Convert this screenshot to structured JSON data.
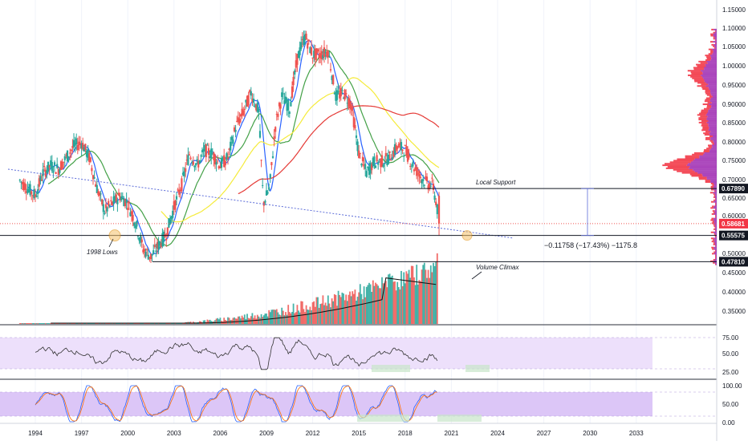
{
  "colors": {
    "up": "#26a69a",
    "down": "#ef5350",
    "ma_blue": "#2962ff",
    "ma_green": "#43a047",
    "ma_yellow": "#f5eb3b",
    "ma_red": "#e53935",
    "trend": "#5b6bd8",
    "volume_ma": "#111111",
    "osc_fill": "#ede0fb",
    "osc_line": "#333333",
    "stoch_k": "#2962ff",
    "stoch_d": "#ff6d00",
    "profile_red": "#f23645",
    "profile_purple": "#9c27b0",
    "grid": "#f0f3fa",
    "axis_text": "#131722"
  },
  "price_axis": {
    "ticks": [
      "1.15000",
      "1.10000",
      "1.05000",
      "1.00000",
      "0.95000",
      "0.90000",
      "0.85000",
      "0.80000",
      "0.75000",
      "0.70000",
      "0.65000",
      "0.60000",
      "0.50000",
      "0.45000",
      "0.40000",
      "0.35000"
    ],
    "labels": [
      {
        "text": "0.67890",
        "kind": "dark"
      },
      {
        "text": "0.58681",
        "kind": "red"
      },
      {
        "text": "0.55575",
        "kind": "dark"
      },
      {
        "text": "0.47810",
        "kind": "dark"
      }
    ]
  },
  "rsi_axis": {
    "ticks": [
      "75.00",
      "50.00",
      "25.00"
    ]
  },
  "stoch_axis": {
    "ticks": [
      "100.00",
      "50.00",
      "0.00"
    ]
  },
  "time_axis": {
    "ticks": [
      "1994",
      "1997",
      "2000",
      "2003",
      "2006",
      "2009",
      "2012",
      "2015",
      "2018",
      "2021",
      "2024",
      "2027",
      "2030",
      "2033"
    ]
  },
  "annotations": {
    "local_support": "Local Support",
    "lows_1998": "1998 Lows",
    "volume_climax": "Volume Climax",
    "measure": "−0.11758 (−17.43%) −1175.8"
  },
  "chart_data": {
    "type": "candlestick",
    "interval": "quarterly (approx.)",
    "price_range": [
      0.47,
      1.16
    ],
    "levels": [
      0.6789,
      0.58681,
      0.55575,
      0.4781
    ],
    "price_series": [
      [
        "1993.0",
        0.7
      ],
      [
        "1993.5",
        0.68
      ],
      [
        "1994.0",
        0.66
      ],
      [
        "1994.5",
        0.72
      ],
      [
        "1995.0",
        0.74
      ],
      [
        "1995.5",
        0.73
      ],
      [
        "1996.0",
        0.76
      ],
      [
        "1996.5",
        0.79
      ],
      [
        "1997.0",
        0.8
      ],
      [
        "1997.5",
        0.76
      ],
      [
        "1998.0",
        0.68
      ],
      [
        "1998.5",
        0.62
      ],
      [
        "1999.0",
        0.64
      ],
      [
        "1999.5",
        0.66
      ],
      [
        "2000.0",
        0.64
      ],
      [
        "2000.5",
        0.59
      ],
      [
        "2001.0",
        0.52
      ],
      [
        "2001.5",
        0.5
      ],
      [
        "2002.0",
        0.53
      ],
      [
        "2002.5",
        0.56
      ],
      [
        "2003.0",
        0.63
      ],
      [
        "2003.5",
        0.69
      ],
      [
        "2004.0",
        0.77
      ],
      [
        "2004.5",
        0.74
      ],
      [
        "2005.0",
        0.78
      ],
      [
        "2005.5",
        0.77
      ],
      [
        "2006.0",
        0.74
      ],
      [
        "2006.5",
        0.76
      ],
      [
        "2007.0",
        0.84
      ],
      [
        "2007.5",
        0.88
      ],
      [
        "2008.0",
        0.93
      ],
      [
        "2008.5",
        0.88
      ],
      [
        "2008.8",
        0.64
      ],
      [
        "2009.2",
        0.68
      ],
      [
        "2009.6",
        0.85
      ],
      [
        "2010.0",
        0.92
      ],
      [
        "2010.5",
        0.89
      ],
      [
        "2011.0",
        1.02
      ],
      [
        "2011.5",
        1.08
      ],
      [
        "2012.0",
        1.03
      ],
      [
        "2012.5",
        1.03
      ],
      [
        "2013.0",
        1.04
      ],
      [
        "2013.5",
        0.92
      ],
      [
        "2014.0",
        0.93
      ],
      [
        "2014.5",
        0.9
      ],
      [
        "2015.0",
        0.77
      ],
      [
        "2015.5",
        0.72
      ],
      [
        "2016.0",
        0.75
      ],
      [
        "2016.5",
        0.75
      ],
      [
        "2017.0",
        0.76
      ],
      [
        "2017.5",
        0.79
      ],
      [
        "2018.0",
        0.78
      ],
      [
        "2018.5",
        0.74
      ],
      [
        "2019.0",
        0.71
      ],
      [
        "2019.5",
        0.69
      ],
      [
        "2019.8",
        0.69
      ],
      [
        "2020.1",
        0.62
      ],
      [
        "2020.2",
        0.5868
      ]
    ],
    "measurement": {
      "change": -0.11758,
      "percent": -17.43,
      "ticks": -1175.8
    },
    "rsi_range": [
      0,
      100
    ],
    "stoch_range": [
      0,
      100
    ]
  }
}
